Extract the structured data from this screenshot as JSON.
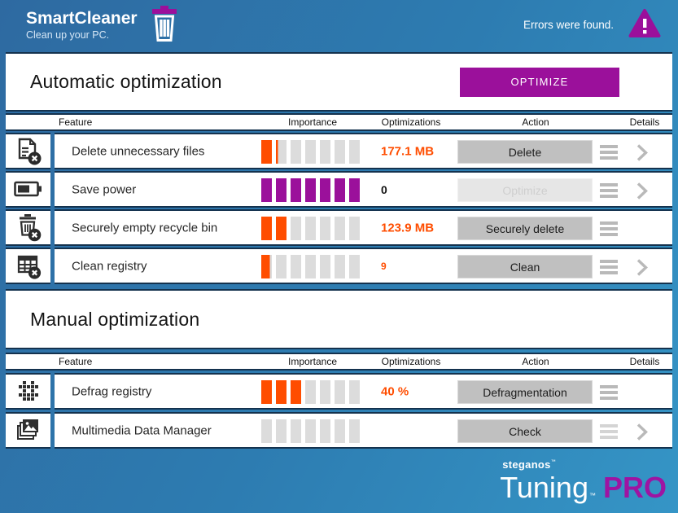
{
  "topbar": {
    "title": "SmartCleaner",
    "subtitle": "Clean up your PC.",
    "status": "Errors were found."
  },
  "columns": [
    "Feature",
    "Importance",
    "Optimizations",
    "Action",
    "Details"
  ],
  "colors": {
    "purple": "#9b109b",
    "orange": "#ff4d00",
    "bar_empty": "#dcdcdc"
  },
  "sections": [
    {
      "title": "Automatic optimization",
      "optimize_label": "OPTIMIZE",
      "rows": [
        {
          "feature": "Delete unnecessary files",
          "icon": "delete-files-icon",
          "importance": 1.2,
          "importance_max": 7,
          "importance_color": "orange",
          "optimizations": "177.1 MB",
          "optimizations_style": "orange",
          "action": "Delete",
          "action_enabled": true,
          "details": true
        },
        {
          "feature": "Save power",
          "icon": "battery-icon",
          "importance": 7,
          "importance_max": 7,
          "importance_color": "purple",
          "optimizations": "0",
          "optimizations_style": "black",
          "action": "Optimize",
          "action_enabled": false,
          "details": true
        },
        {
          "feature": "Securely empty recycle bin",
          "icon": "recycle-bin-delete-icon",
          "importance": 2,
          "importance_max": 7,
          "importance_color": "orange",
          "optimizations": "123.9 MB",
          "optimizations_style": "orange",
          "action": "Securely delete",
          "action_enabled": true,
          "details": false
        },
        {
          "feature": "Clean registry",
          "icon": "registry-delete-icon",
          "importance": 0.8,
          "importance_max": 7,
          "importance_color": "orange",
          "optimizations": "9",
          "optimizations_style": "orange-small",
          "action": "Clean",
          "action_enabled": true,
          "details": true
        }
      ]
    },
    {
      "title": "Manual optimization",
      "rows": [
        {
          "feature": "Defrag registry",
          "icon": "defrag-icon",
          "importance": 3,
          "importance_max": 7,
          "importance_color": "orange",
          "optimizations": "40 %",
          "optimizations_style": "orange",
          "action": "Defragmentation",
          "action_enabled": true,
          "details": false
        },
        {
          "feature": "Multimedia Data Manager",
          "icon": "multimedia-icon",
          "importance": 0,
          "importance_max": 7,
          "importance_color": "orange",
          "optimizations": "",
          "optimizations_style": "orange",
          "action": "Check",
          "action_enabled": true,
          "menu_muted": true,
          "details": true
        }
      ]
    }
  ],
  "footer": {
    "brand_small": "steganos",
    "brand_small_mark": "™",
    "brand_large": "Tuning",
    "brand_large_mark": "™",
    "brand_badge": "PRO"
  }
}
